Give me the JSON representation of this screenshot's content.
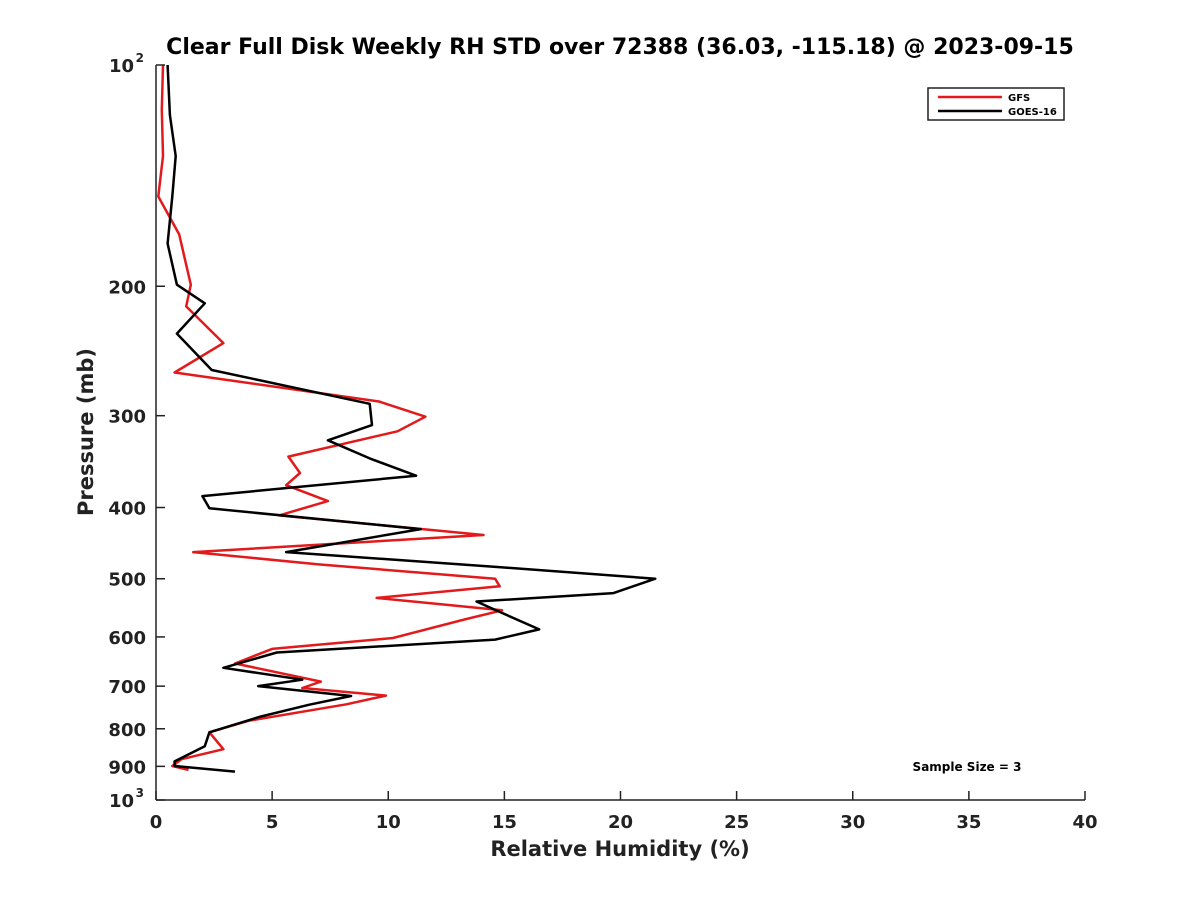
{
  "chart_data": {
    "type": "line",
    "title": "Clear Full Disk Weekly RH STD over 72388 (36.03, -115.18) @ 2023-09-15",
    "xlabel": "Relative Humidity (%)",
    "ylabel": "Pressure (mb)",
    "xlim": [
      0,
      40
    ],
    "ylim": [
      100,
      1000
    ],
    "y_scale": "log",
    "y_reversed": true,
    "x_ticks": [
      "0",
      "5",
      "10",
      "15",
      "20",
      "25",
      "30",
      "35",
      "40"
    ],
    "y_ticks": [
      {
        "value": 100,
        "base": "10",
        "exp": "2"
      },
      {
        "value": 200,
        "label": "200"
      },
      {
        "value": 300,
        "label": "300"
      },
      {
        "value": 400,
        "label": "400"
      },
      {
        "value": 500,
        "label": "500"
      },
      {
        "value": 600,
        "label": "600"
      },
      {
        "value": 700,
        "label": "700"
      },
      {
        "value": 800,
        "label": "800"
      },
      {
        "value": 900,
        "label": "900"
      },
      {
        "value": 1000,
        "base": "10",
        "exp": "3"
      }
    ],
    "legend_position": "top-right",
    "annotation": "Sample Size = 3",
    "series": [
      {
        "name": "GFS",
        "color": "#e31a1c",
        "points": [
          [
            0.3,
            100
          ],
          [
            0.25,
            115
          ],
          [
            0.3,
            133
          ],
          [
            0.1,
            151
          ],
          [
            1.0,
            170
          ],
          [
            1.5,
            199
          ],
          [
            1.3,
            213
          ],
          [
            2.9,
            239
          ],
          [
            0.8,
            262
          ],
          [
            9.6,
            287
          ],
          [
            11.6,
            301
          ],
          [
            10.4,
            315
          ],
          [
            5.7,
            341
          ],
          [
            6.2,
            359
          ],
          [
            5.6,
            373
          ],
          [
            7.4,
            392
          ],
          [
            5.3,
            410
          ],
          [
            14.1,
            436
          ],
          [
            1.6,
            460
          ],
          [
            7.0,
            478
          ],
          [
            14.6,
            500
          ],
          [
            14.8,
            512
          ],
          [
            9.5,
            531
          ],
          [
            14.9,
            552
          ],
          [
            13.3,
            568
          ],
          [
            10.2,
            602
          ],
          [
            5.0,
            623
          ],
          [
            3.4,
            652
          ],
          [
            7.1,
            690
          ],
          [
            6.3,
            704
          ],
          [
            9.9,
            721
          ],
          [
            8.2,
            741
          ],
          [
            4.0,
            780
          ],
          [
            2.3,
            809
          ],
          [
            2.9,
            853
          ],
          [
            1.1,
            880
          ],
          [
            0.7,
            899
          ],
          [
            1.4,
            910
          ]
        ]
      },
      {
        "name": "GOES-16",
        "color": "#000000",
        "points": [
          [
            0.5,
            100
          ],
          [
            0.6,
            117
          ],
          [
            0.85,
            133
          ],
          [
            0.7,
            151
          ],
          [
            0.5,
            175
          ],
          [
            0.9,
            199
          ],
          [
            2.1,
            211
          ],
          [
            0.9,
            232
          ],
          [
            2.4,
            260
          ],
          [
            9.2,
            289
          ],
          [
            9.3,
            309
          ],
          [
            7.4,
            324
          ],
          [
            9.2,
            343
          ],
          [
            11.2,
            362
          ],
          [
            2.0,
            386
          ],
          [
            2.3,
            401
          ],
          [
            11.4,
            428
          ],
          [
            5.6,
            460
          ],
          [
            14.7,
            482
          ],
          [
            21.5,
            500
          ],
          [
            19.7,
            523
          ],
          [
            13.8,
            537
          ],
          [
            14.7,
            553
          ],
          [
            16.5,
            586
          ],
          [
            14.6,
            605
          ],
          [
            5.2,
            630
          ],
          [
            2.9,
            661
          ],
          [
            6.3,
            686
          ],
          [
            4.4,
            700
          ],
          [
            8.4,
            722
          ],
          [
            6.6,
            742
          ],
          [
            4.5,
            770
          ],
          [
            2.3,
            809
          ],
          [
            2.1,
            845
          ],
          [
            0.8,
            886
          ],
          [
            0.8,
            899
          ],
          [
            3.4,
            915
          ]
        ]
      }
    ]
  }
}
